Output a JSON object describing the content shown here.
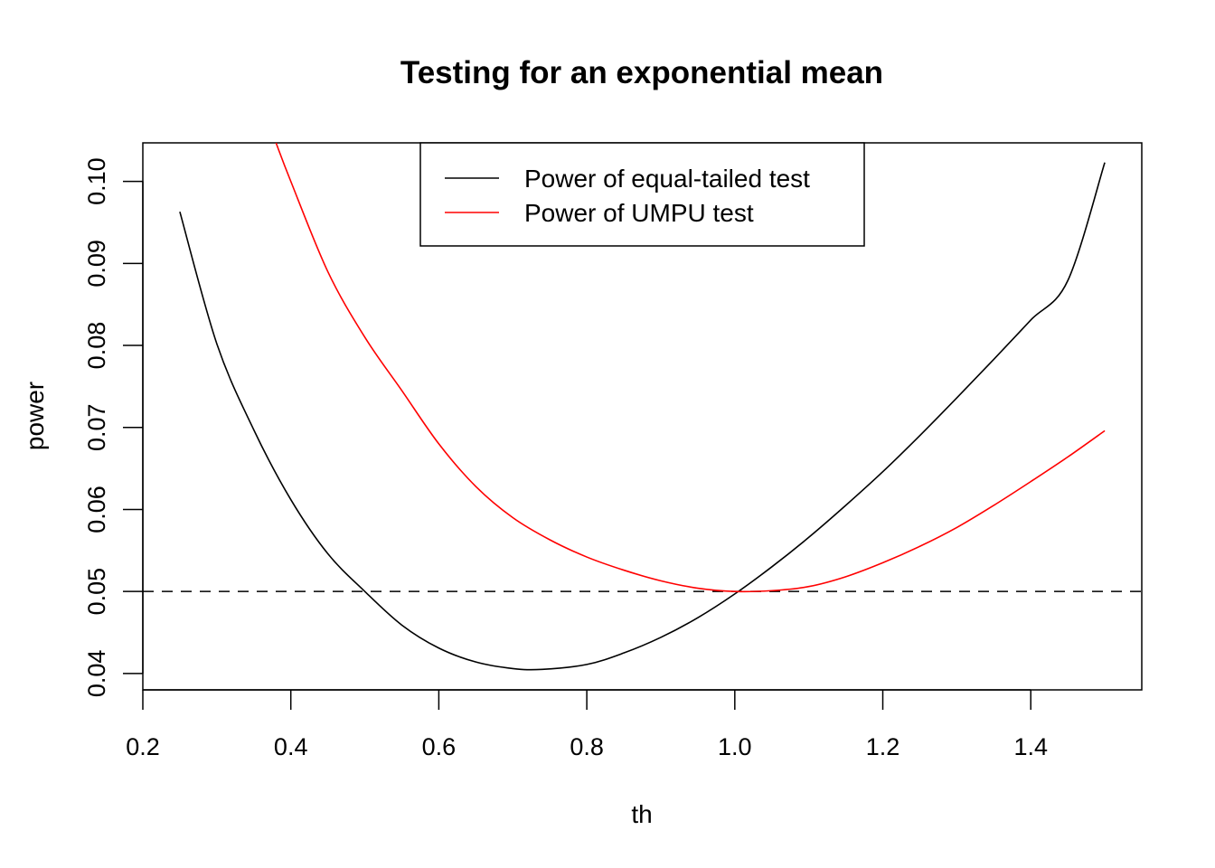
{
  "chart_data": {
    "type": "line",
    "title": "Testing for an exponential mean",
    "xlabel": "th",
    "ylabel": "power",
    "xlim": [
      0.2,
      1.55
    ],
    "ylim": [
      0.038,
      0.1047
    ],
    "xticks": [
      "0.2",
      "0.4",
      "0.6",
      "0.8",
      "1.0",
      "1.2",
      "1.4"
    ],
    "yticks": [
      "0.04",
      "0.05",
      "0.06",
      "0.07",
      "0.08",
      "0.09",
      "0.10"
    ],
    "grid": false,
    "legend_position": "top-center",
    "reference_line": {
      "y": 0.05,
      "style": "dashed",
      "color": "#000000"
    },
    "series": [
      {
        "name": "Power of equal-tailed test",
        "color": "#000000",
        "x": [
          0.25,
          0.3,
          0.35,
          0.4,
          0.45,
          0.5,
          0.55,
          0.6,
          0.65,
          0.7,
          0.74,
          0.8,
          0.85,
          0.9,
          0.95,
          1.0,
          1.05,
          1.1,
          1.15,
          1.2,
          1.25,
          1.3,
          1.35,
          1.4,
          1.45,
          1.5
        ],
        "y": [
          0.0963,
          0.0802,
          0.0697,
          0.0612,
          0.0546,
          0.05,
          0.0459,
          0.0431,
          0.0414,
          0.0406,
          0.0405,
          0.0411,
          0.0425,
          0.0444,
          0.0468,
          0.0497,
          0.053,
          0.0566,
          0.0605,
          0.0646,
          0.069,
          0.0736,
          0.0783,
          0.0831,
          0.0879,
          0.1023
        ]
      },
      {
        "name": "Power of UMPU test",
        "color": "#ff0000",
        "x": [
          0.38,
          0.4,
          0.45,
          0.5,
          0.55,
          0.6,
          0.65,
          0.7,
          0.75,
          0.8,
          0.85,
          0.9,
          0.95,
          1.0,
          1.05,
          1.1,
          1.15,
          1.2,
          1.25,
          1.3,
          1.35,
          1.4,
          1.45,
          1.5
        ],
        "y": [
          0.1047,
          0.1,
          0.089,
          0.081,
          0.0745,
          0.068,
          0.0628,
          0.059,
          0.0563,
          0.0542,
          0.0526,
          0.0513,
          0.0504,
          0.05,
          0.0501,
          0.0506,
          0.0518,
          0.0535,
          0.0555,
          0.0578,
          0.0605,
          0.0634,
          0.0664,
          0.0696
        ]
      }
    ]
  }
}
